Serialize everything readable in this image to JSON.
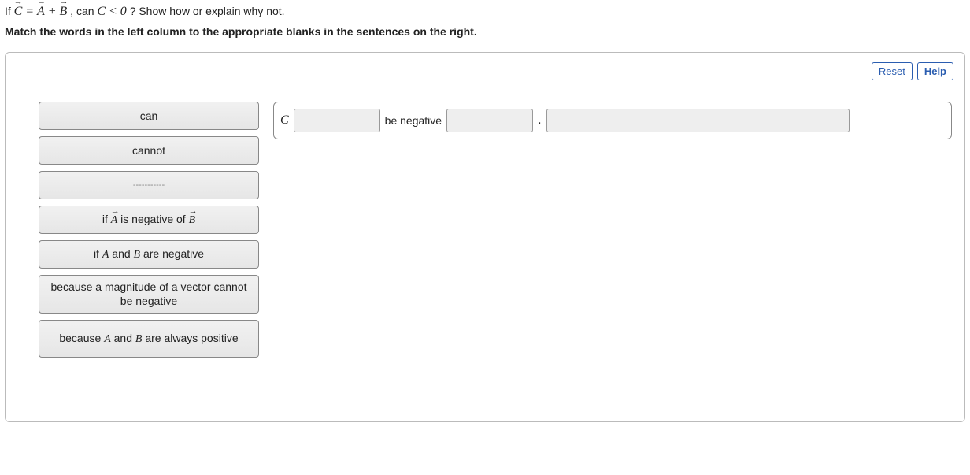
{
  "question": {
    "prefix": "If ",
    "vecC": "C",
    "eq": " = ",
    "vecA": "A",
    "plus": " + ",
    "vecB": "B",
    "mid": ", can ",
    "Civ": "C",
    "lt": " < 0",
    "suffix": "? Show how or explain why not."
  },
  "instruction": "Match the words in the left column to the appropriate blanks in the sentences on the right.",
  "toolbar": {
    "reset": "Reset",
    "help": "Help"
  },
  "tiles": {
    "can": "can",
    "cannot": "cannot",
    "blank": "-----------",
    "ifAnegB_pre": "if ",
    "ifAnegB_A": "A",
    "ifAnegB_mid": " is negative of ",
    "ifAnegB_B": "B",
    "ifABneg_pre": "if ",
    "ifABneg_A": "A",
    "ifABneg_mid": " and ",
    "ifABneg_B": "B",
    "ifABneg_suf": " are negative",
    "becauseMag": "because a magnitude of a vector cannot be negative",
    "becausePos_pre": "because ",
    "becausePos_A": "A",
    "becausePos_mid": " and ",
    "becausePos_B": "B",
    "becausePos_suf": " are always positive"
  },
  "sentence": {
    "C": "C",
    "mid": "be negative",
    "end": "."
  },
  "colors": {
    "panel_border": "#bbbbbb",
    "tile_border": "#888888",
    "tile_bg_top": "#f1f1f1",
    "tile_bg_bot": "#e6e6e6",
    "btn_border": "#2a5db0",
    "btn_text": "#2a5db0",
    "slot_bg": "#eeeeee",
    "slot_border": "#999999"
  }
}
